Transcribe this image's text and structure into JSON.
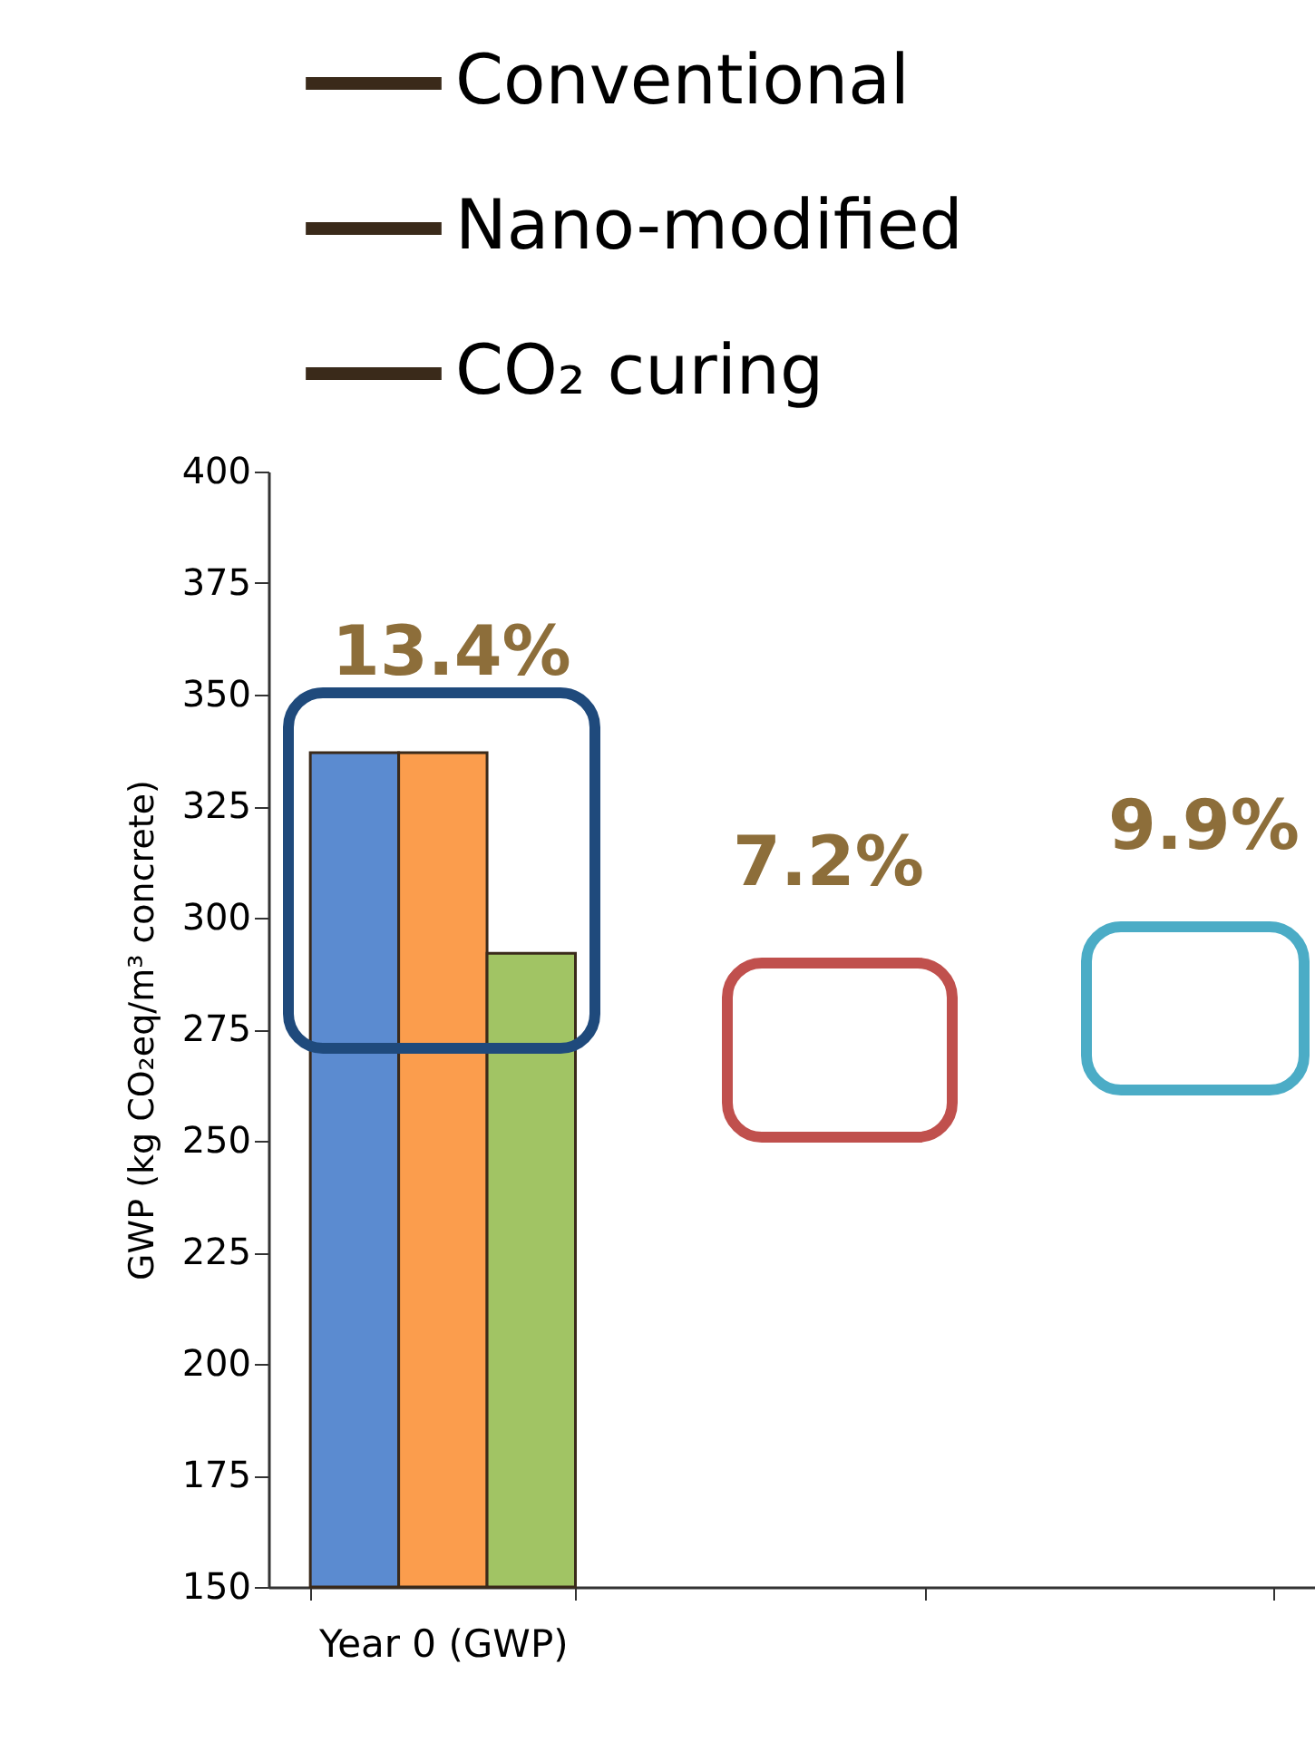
{
  "chart_data": {
    "type": "bar",
    "ylabel": "GWP (kg CO₂eq/m³ concrete)",
    "categories": [
      "Year 0\n(GWP)",
      null,
      null
    ],
    "series": [
      {
        "name": "Conventional",
        "color": "#5b8bd0",
        "values": [
          337,
          null,
          null
        ]
      },
      {
        "name": "Nano-modified",
        "color": "#fb9d4d",
        "values": [
          337,
          null,
          null
        ]
      },
      {
        "name": "CO₂ curing",
        "color": "#a1c464",
        "values": [
          292,
          null,
          null
        ]
      }
    ],
    "ylim": [
      150,
      400
    ],
    "yticks": [
      150,
      175,
      200,
      225,
      250,
      275,
      300,
      325,
      350,
      375,
      400
    ],
    "legend": "top",
    "grid": false,
    "annotations": [
      "13.4%",
      "7.2%",
      "9.9%"
    ]
  }
}
